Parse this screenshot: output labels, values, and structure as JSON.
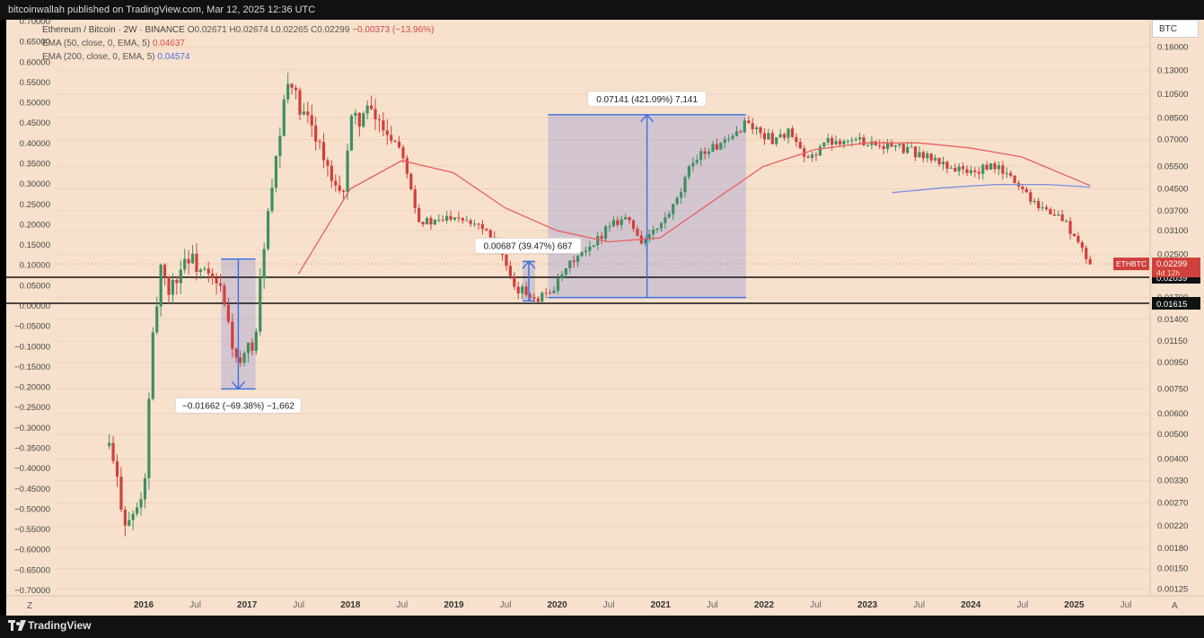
{
  "header": {
    "published": "bitcoinwallah published on TradingView.com, Mar 12, 2025 12:36 UTC"
  },
  "legend": {
    "symbol": "Ethereum / Bitcoin · 2W · BINANCE",
    "ohlc": "O0.02671 H0.02674 L0.02265 C0.02299",
    "change": "−0.00373 (−13.96%)",
    "ema50_label": "EMA (50, close, 0, EMA, 5)",
    "ema50_value": "0.04637",
    "ema200_label": "EMA (200, close, 0, EMA, 5)",
    "ema200_value": "0.04574"
  },
  "right_axis": {
    "unit": "BTC",
    "ticks": [
      "0.16000",
      "0.13000",
      "0.10500",
      "0.08500",
      "0.07000",
      "0.05500",
      "0.04500",
      "0.03700",
      "0.03100",
      "0.02500",
      "0.01700",
      "0.01400",
      "0.01150",
      "0.00950",
      "0.00750",
      "0.00600",
      "0.00500",
      "0.00400",
      "0.00330",
      "0.00270",
      "0.00220",
      "0.00180",
      "0.00150",
      "0.00125"
    ],
    "price_tag": {
      "symbol": "ETHBTC",
      "value": "0.02299",
      "countdown": "4d 12h"
    },
    "line_tag_1": "0.02039",
    "line_tag_2": "0.01615"
  },
  "left_axis": {
    "ticks": [
      "0.70000",
      "0.65000",
      "0.60000",
      "0.55000",
      "0.50000",
      "0.45000",
      "0.40000",
      "0.35000",
      "0.30000",
      "0.25000",
      "0.20000",
      "0.15000",
      "0.10000",
      "0.05000",
      "0.00000",
      "−0.05000",
      "−0.10000",
      "−0.15000",
      "−0.20000",
      "−0.25000",
      "−0.30000",
      "−0.35000",
      "−0.40000",
      "−0.45000",
      "−0.50000",
      "−0.55000",
      "−0.60000",
      "−0.65000",
      "−0.70000"
    ]
  },
  "x_axis": {
    "ticks": [
      {
        "label": "2016",
        "bold": true
      },
      {
        "label": "Jul",
        "bold": false
      },
      {
        "label": "2017",
        "bold": true
      },
      {
        "label": "Jul",
        "bold": false
      },
      {
        "label": "2018",
        "bold": true
      },
      {
        "label": "Jul",
        "bold": false
      },
      {
        "label": "2019",
        "bold": true
      },
      {
        "label": "Jul",
        "bold": false
      },
      {
        "label": "2020",
        "bold": true
      },
      {
        "label": "Jul",
        "bold": false
      },
      {
        "label": "2021",
        "bold": true
      },
      {
        "label": "Jul",
        "bold": false
      },
      {
        "label": "2022",
        "bold": true
      },
      {
        "label": "Jul",
        "bold": false
      },
      {
        "label": "2023",
        "bold": true
      },
      {
        "label": "Jul",
        "bold": false
      },
      {
        "label": "2024",
        "bold": true
      },
      {
        "label": "Jul",
        "bold": false
      },
      {
        "label": "2025",
        "bold": true
      },
      {
        "label": "Jul",
        "bold": false
      }
    ]
  },
  "measurements": [
    {
      "label": "−0.01662 (−69.38%) −1,662"
    },
    {
      "label": "0.00687 (39.47%) 687"
    },
    {
      "label": "0.07141 (421.09%) 7,141"
    }
  ],
  "bottom": {
    "brand": "TradingView",
    "scale_left": "Z",
    "scale_right": "A"
  },
  "colors": {
    "bg": "#f7e1cc",
    "up": "#3f8f62",
    "down": "#d0403c",
    "ema50": "#e86060",
    "ema200": "#7a8ee0",
    "measure": "#3a6ee0"
  },
  "chart_data": {
    "type": "candlestick",
    "title": "Ethereum / Bitcoin · 2W · BINANCE",
    "y_scale": "log",
    "ylim": [
      0.00125,
      0.18
    ],
    "series": [
      {
        "name": "ETHBTC close (approx.)",
        "x": [
          "2015-09",
          "2015-11",
          "2016-01",
          "2016-02",
          "2016-03",
          "2016-04",
          "2016-06",
          "2016-08",
          "2016-10",
          "2016-12",
          "2017-02",
          "2017-03",
          "2017-04",
          "2017-05",
          "2017-06",
          "2017-07",
          "2017-09",
          "2017-11",
          "2017-12",
          "2018-01",
          "2018-03",
          "2018-05",
          "2018-07",
          "2018-09",
          "2018-11",
          "2019-01",
          "2019-04",
          "2019-06",
          "2019-08",
          "2019-09",
          "2019-11",
          "2020-01",
          "2020-03",
          "2020-05",
          "2020-07",
          "2020-09",
          "2020-11",
          "2021-01",
          "2021-03",
          "2021-05",
          "2021-07",
          "2021-09",
          "2021-11",
          "2021-12",
          "2022-02",
          "2022-04",
          "2022-06",
          "2022-08",
          "2022-10",
          "2023-01",
          "2023-04",
          "2023-07",
          "2023-10",
          "2024-01",
          "2024-04",
          "2024-06",
          "2024-08",
          "2024-10",
          "2024-12",
          "2025-02",
          "2025-03"
        ],
        "y": [
          0.0045,
          0.0022,
          0.0028,
          0.011,
          0.023,
          0.018,
          0.025,
          0.021,
          0.018,
          0.0088,
          0.012,
          0.028,
          0.045,
          0.08,
          0.13,
          0.09,
          0.075,
          0.045,
          0.04,
          0.08,
          0.09,
          0.078,
          0.065,
          0.034,
          0.033,
          0.036,
          0.033,
          0.029,
          0.018,
          0.018,
          0.017,
          0.019,
          0.024,
          0.026,
          0.033,
          0.035,
          0.028,
          0.032,
          0.04,
          0.06,
          0.065,
          0.068,
          0.083,
          0.077,
          0.07,
          0.075,
          0.057,
          0.068,
          0.07,
          0.069,
          0.066,
          0.062,
          0.056,
          0.052,
          0.055,
          0.049,
          0.042,
          0.037,
          0.034,
          0.026,
          0.02299
        ]
      },
      {
        "name": "EMA (50, close, 0, EMA, 5)",
        "x": [
          "2017-07",
          "2018-01",
          "2018-07",
          "2019-01",
          "2019-07",
          "2020-01",
          "2020-07",
          "2021-01",
          "2021-07",
          "2022-01",
          "2022-07",
          "2023-01",
          "2023-07",
          "2024-01",
          "2024-07",
          "2025-03"
        ],
        "y": [
          0.021,
          0.045,
          0.058,
          0.052,
          0.038,
          0.031,
          0.028,
          0.029,
          0.04,
          0.055,
          0.064,
          0.068,
          0.068,
          0.065,
          0.06,
          0.04637
        ]
      },
      {
        "name": "EMA (200, close, 0, EMA, 5)",
        "x": [
          "2023-04",
          "2023-10",
          "2024-04",
          "2024-10",
          "2025-03"
        ],
        "y": [
          0.0435,
          0.0455,
          0.0468,
          0.0468,
          0.04574
        ]
      }
    ],
    "horizontal_lines": [
      0.02039,
      0.01615
    ],
    "measurements": [
      {
        "from_date": "2016-10",
        "to_date": "2017-02",
        "from": 0.024,
        "to": 0.0075,
        "label": "−0.01662 (−69.38%) −1,662"
      },
      {
        "from_date": "2019-09",
        "to_date": "2019-10",
        "from": 0.0165,
        "to": 0.0235,
        "label": "0.00687 (39.47%) 687"
      },
      {
        "from_date": "2019-12",
        "to_date": "2021-11",
        "from": 0.017,
        "to": 0.0875,
        "label": "0.07141 (421.09%) 7,141"
      }
    ]
  }
}
